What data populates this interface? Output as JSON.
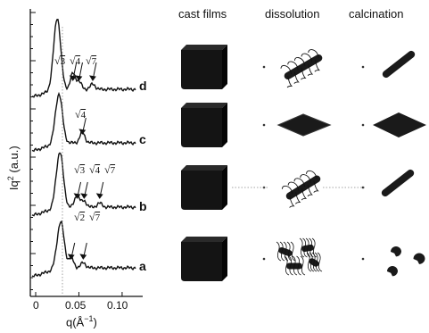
{
  "plot": {
    "ylabel_prefix": "Iq",
    "ylabel_sup": "2",
    "ylabel_suffix": " (a.u.)",
    "xlabel": "q(Å",
    "xlabel_sup": "−1",
    "xlabel_close": ")",
    "xticks": [
      "0",
      "0.05",
      "0.10"
    ],
    "curves": [
      {
        "letter": "d",
        "peaks": [
          "3",
          "4",
          "7"
        ]
      },
      {
        "letter": "c",
        "peaks": [
          "4"
        ]
      },
      {
        "letter": "b",
        "peaks": [
          "3",
          "4",
          "7"
        ]
      },
      {
        "letter": "a",
        "peaks": [
          "2",
          "7"
        ]
      }
    ]
  },
  "columns": {
    "cast": "cast films",
    "dissolution": "dissolution",
    "calcination": "calcination"
  },
  "colors": {
    "ink": "#111111",
    "block": "#141414",
    "dotted": "#8a8a8a"
  },
  "chart_data": {
    "type": "line",
    "xlabel": "q(Å−1)",
    "ylabel": "Iq2 (a.u.)",
    "xlim": [
      0,
      0.13
    ],
    "xticks": [
      0,
      0.05,
      0.1
    ],
    "series": [
      {
        "name": "a",
        "peak_q": [
          0.029,
          0.041,
          0.055
        ]
      },
      {
        "name": "b",
        "peak_q": [
          0.028,
          0.048,
          0.056,
          0.074
        ]
      },
      {
        "name": "c",
        "peak_q": [
          0.027,
          0.054
        ]
      },
      {
        "name": "d",
        "peak_q": [
          0.025,
          0.043,
          0.05,
          0.066
        ]
      }
    ]
  }
}
